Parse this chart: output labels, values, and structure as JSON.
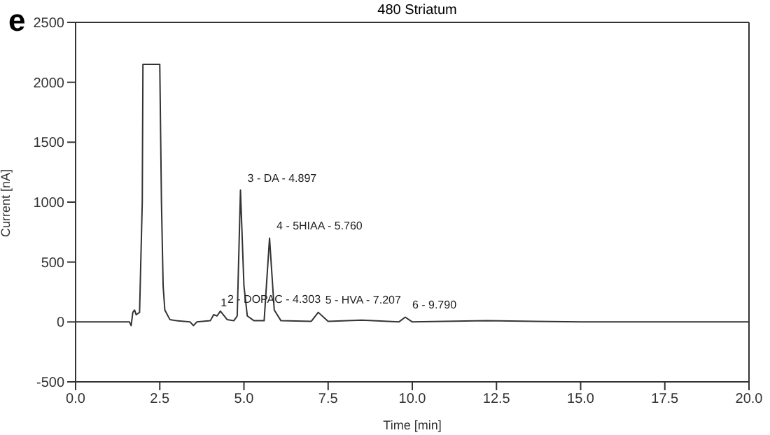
{
  "chart_data": {
    "type": "line",
    "title": "480 Striatum",
    "xlabel": "Time [min]",
    "ylabel": "Current [nA]",
    "annotations": [
      "e",
      {
        "text": "1",
        "x": 4.1,
        "y": 60
      },
      {
        "text": "2 - DOPAC - 4.303",
        "x": 4.303,
        "y": 90
      },
      {
        "text": "3 - DA - 4.897",
        "x": 4.897,
        "y": 1100
      },
      {
        "text": "4 - 5HIAA - 5.760",
        "x": 5.76,
        "y": 700
      },
      {
        "text": "5 - HVA - 7.207",
        "x": 7.207,
        "y": 80
      },
      {
        "text": "6 - 9.790",
        "x": 9.79,
        "y": 40
      }
    ],
    "x": [
      0,
      1.0,
      1.6,
      1.65,
      1.7,
      1.75,
      1.8,
      1.9,
      1.98,
      2.0,
      2.5,
      2.55,
      2.6,
      2.65,
      2.8,
      3.0,
      3.4,
      3.5,
      3.6,
      4.0,
      4.1,
      4.2,
      4.3,
      4.5,
      4.7,
      4.8,
      4.897,
      5.0,
      5.1,
      5.3,
      5.6,
      5.76,
      5.9,
      6.1,
      7.0,
      7.207,
      7.5,
      8.5,
      9.6,
      9.79,
      10.0,
      12.2,
      15.0,
      20.0
    ],
    "series": [
      {
        "color": "#333333",
        "values": [
          0,
          0,
          0,
          -30,
          80,
          100,
          60,
          80,
          1000,
          2150,
          2150,
          1000,
          300,
          100,
          20,
          10,
          0,
          -30,
          0,
          10,
          60,
          50,
          90,
          20,
          10,
          50,
          1100,
          300,
          50,
          10,
          10,
          700,
          100,
          10,
          5,
          80,
          5,
          15,
          0,
          40,
          0,
          10,
          0,
          0
        ]
      }
    ],
    "xlim": [
      0,
      20
    ],
    "xticks": [
      {
        "value": 0,
        "label": "0.0"
      },
      {
        "value": 2.5,
        "label": "2.5"
      },
      {
        "value": 5,
        "label": "5.0"
      },
      {
        "value": 7.5,
        "label": "7.5"
      },
      {
        "value": 10,
        "label": "10.0"
      },
      {
        "value": 12.5,
        "label": "12.5"
      },
      {
        "value": 15,
        "label": "15.0"
      },
      {
        "value": 17.5,
        "label": "17.5"
      },
      {
        "value": 20,
        "label": "20.0"
      }
    ],
    "ylim": [
      -500,
      2500
    ],
    "yticks": [
      -500,
      0,
      500,
      1000,
      1500,
      2000,
      2500
    ],
    "grid": false,
    "legend": false,
    "marker": "none",
    "line_style": "solid"
  }
}
